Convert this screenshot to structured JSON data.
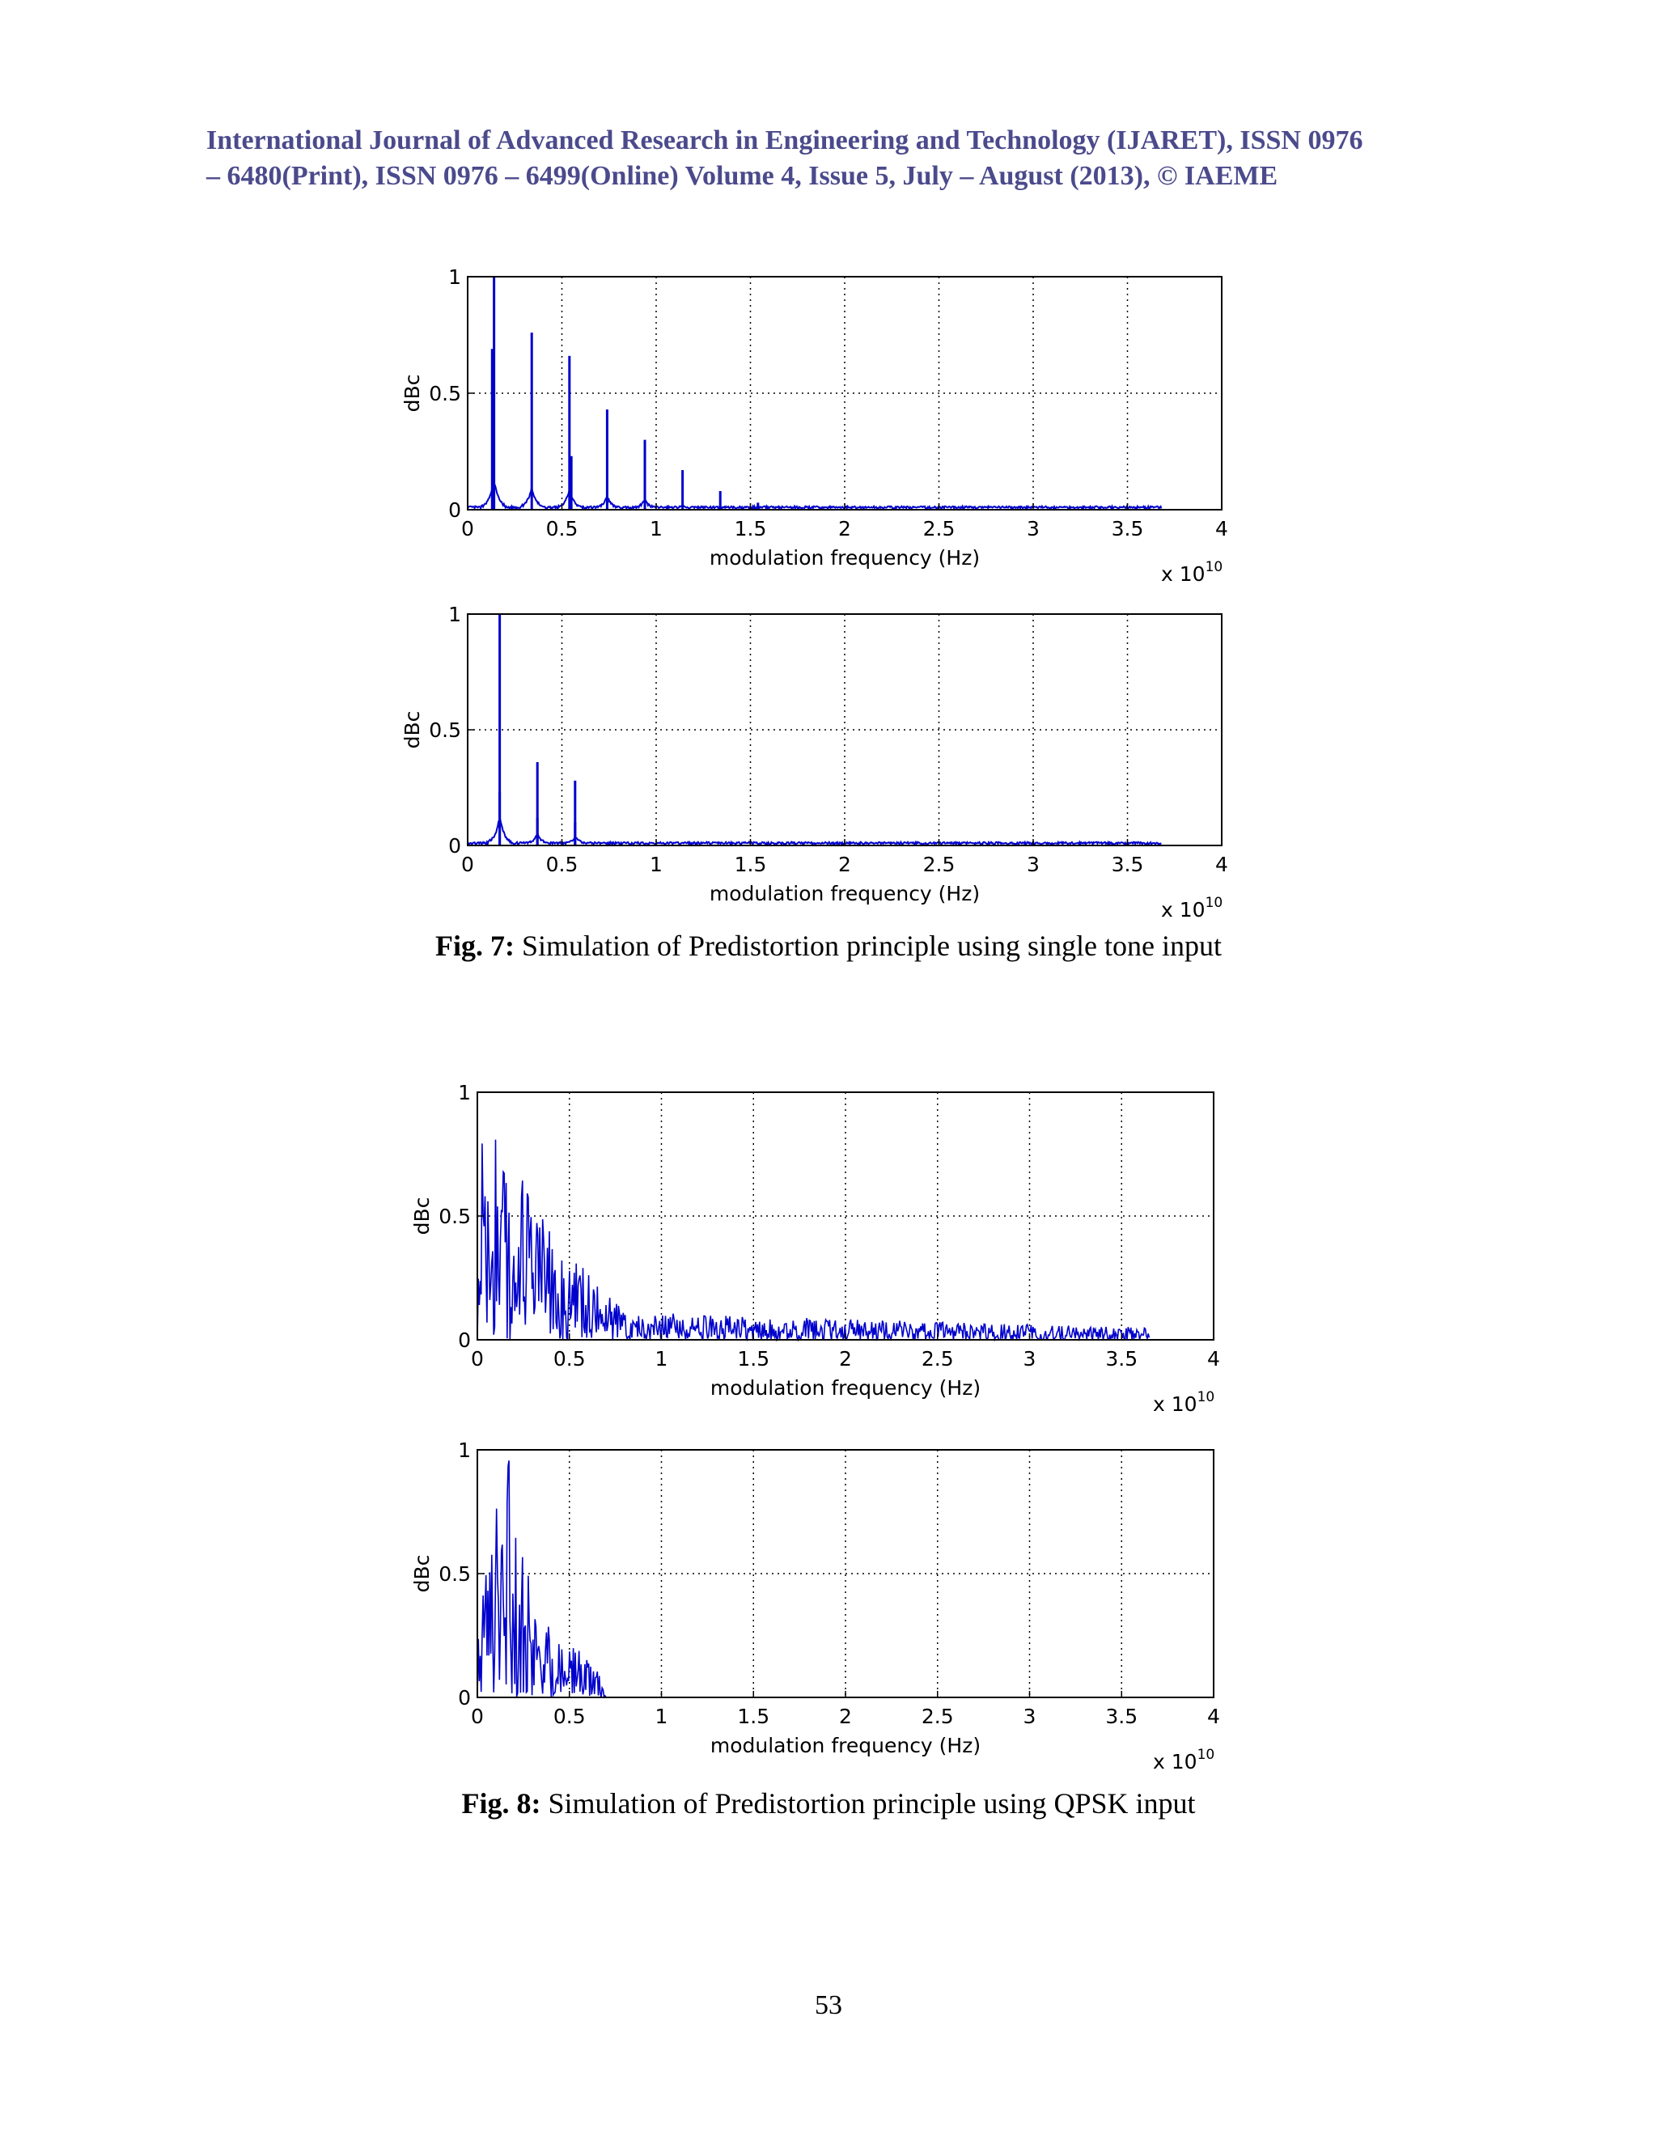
{
  "header": {
    "line1": "International Journal of Advanced Research in Engineering and Technology (IJARET), ISSN 0976",
    "line2": "– 6480(Print), ISSN 0976 – 6499(Online) Volume 4, Issue 5, July – August (2013), © IAEME"
  },
  "fig7": {
    "label": "Fig. 7:",
    "text": " Simulation of Predistortion principle using single tone input"
  },
  "fig8": {
    "label": "Fig. 8:",
    "text": " Simulation of Predistortion principle using QPSK input"
  },
  "page_number": "53",
  "chart_data": [
    {
      "type": "line",
      "ylabel": "dBc",
      "xlabel": "modulation frequency (Hz)",
      "x_exponent_label": "x 10^10",
      "xlim": [
        0,
        4
      ],
      "ylim": [
        0,
        1
      ],
      "xticks": [
        "0",
        "0.5",
        "1",
        "1.5",
        "2",
        "2.5",
        "3",
        "3.5",
        "4"
      ],
      "yticks": [
        "0",
        "0.5",
        "1"
      ],
      "grid": true,
      "line_color": "#0000cc",
      "data_extent_x": 3.68,
      "peaks": [
        {
          "x": 0.14,
          "y": 1.0
        },
        {
          "x": 0.13,
          "y": 0.69
        },
        {
          "x": 0.34,
          "y": 0.76
        },
        {
          "x": 0.54,
          "y": 0.66
        },
        {
          "x": 0.55,
          "y": 0.23
        },
        {
          "x": 0.74,
          "y": 0.43
        },
        {
          "x": 0.94,
          "y": 0.3
        },
        {
          "x": 1.14,
          "y": 0.17
        },
        {
          "x": 1.34,
          "y": 0.08
        },
        {
          "x": 1.54,
          "y": 0.03
        }
      ]
    },
    {
      "type": "line",
      "ylabel": "dBc",
      "xlabel": "modulation frequency (Hz)",
      "x_exponent_label": "x 10^10",
      "xlim": [
        0,
        4
      ],
      "ylim": [
        0,
        1
      ],
      "xticks": [
        "0",
        "0.5",
        "1",
        "1.5",
        "2",
        "2.5",
        "3",
        "3.5",
        "4"
      ],
      "yticks": [
        "0",
        "0.5",
        "1"
      ],
      "grid": true,
      "line_color": "#0000cc",
      "data_extent_x": 3.68,
      "peaks": [
        {
          "x": 0.17,
          "y": 1.0
        },
        {
          "x": 0.17,
          "y": 0.23
        },
        {
          "x": 0.37,
          "y": 0.36
        },
        {
          "x": 0.37,
          "y": 0.12
        },
        {
          "x": 0.57,
          "y": 0.28
        },
        {
          "x": 0.57,
          "y": 0.1
        }
      ]
    },
    {
      "type": "line",
      "ylabel": "dBc",
      "xlabel": "modulation frequency (Hz)",
      "x_exponent_label": "x 10^10",
      "xlim": [
        0,
        4
      ],
      "ylim": [
        0,
        1
      ],
      "xticks": [
        "0",
        "0.5",
        "1",
        "1.5",
        "2",
        "2.5",
        "3",
        "3.5",
        "4"
      ],
      "yticks": [
        "0",
        "0.5",
        "1"
      ],
      "grid": true,
      "line_color": "#0000cc",
      "data_extent_x": 3.65,
      "noise_envelope": [
        [
          0,
          0.95
        ],
        [
          0.5,
          0.35
        ],
        [
          0.8,
          0.12
        ],
        [
          1.2,
          0.1
        ],
        [
          3.65,
          0.05
        ]
      ]
    },
    {
      "type": "line",
      "ylabel": "dBc",
      "xlabel": "modulation frequency (Hz)",
      "x_exponent_label": "x 10^10",
      "xlim": [
        0,
        4
      ],
      "ylim": [
        0,
        1
      ],
      "xticks": [
        "0",
        "0.5",
        "1",
        "1.5",
        "2",
        "2.5",
        "3",
        "3.5",
        "4"
      ],
      "yticks": [
        "0",
        "0.5",
        "1"
      ],
      "grid": true,
      "line_color": "#0000cc",
      "data_extent_x": 3.65,
      "noise_envelope": [
        [
          0,
          0.45
        ],
        [
          0.18,
          1.0
        ],
        [
          0.3,
          0.4
        ],
        [
          0.65,
          0.12
        ],
        [
          0.7,
          0.0
        ],
        [
          3.65,
          0.0
        ]
      ]
    }
  ]
}
